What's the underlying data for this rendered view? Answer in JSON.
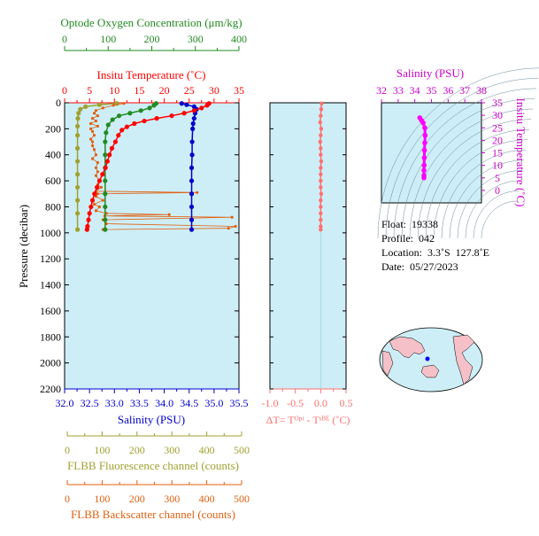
{
  "colors": {
    "temperature": "#ff0000",
    "salinity": "#0000cc",
    "oxygen": "#228b22",
    "fluorescence": "#a0a030",
    "backscatter": "#e06010",
    "salinity_ts": "#cc00cc",
    "delta_t": "#ff6f6f",
    "plot_bg": "#cdeef7",
    "ts_dots": "#ff00ff"
  },
  "chart_data": [
    {
      "type": "line",
      "name": "main-profile",
      "ylabel": "Pressure (decibar)",
      "ylim": [
        2200,
        0
      ],
      "yticks": [
        "0",
        "200",
        "400",
        "600",
        "800",
        "1000",
        "1200",
        "1400",
        "1600",
        "1800",
        "2000",
        "2200"
      ],
      "axes": {
        "oxygen": {
          "label": "Optode Oxygen Concentration (μm/kg)",
          "lim": [
            0,
            400
          ],
          "ticks": [
            "0",
            "100",
            "200",
            "300",
            "400"
          ]
        },
        "temperature": {
          "label": "Insitu Temperature (˚C)",
          "lim": [
            0,
            35
          ],
          "ticks": [
            "0",
            "5",
            "10",
            "15",
            "20",
            "25",
            "30",
            "35"
          ]
        },
        "salinity": {
          "label": "Salinity (PSU)",
          "lim": [
            32.0,
            35.5
          ],
          "ticks": [
            "32.0",
            "32.5",
            "33.0",
            "33.5",
            "34.0",
            "34.5",
            "35.0",
            "35.5"
          ]
        },
        "fluorescence": {
          "label": "FLBB Fluorescence channel (counts)",
          "lim": [
            0,
            500
          ],
          "ticks": [
            "0",
            "100",
            "200",
            "300",
            "400",
            "500"
          ]
        },
        "backscatter": {
          "label": "FLBB Backscatter channel (counts)",
          "lim": [
            0,
            500
          ],
          "ticks": [
            "0",
            "100",
            "200",
            "300",
            "400",
            "500"
          ]
        }
      },
      "series": [
        {
          "key": "temperature",
          "points": [
            [
              29.0,
              5
            ],
            [
              28.6,
              20
            ],
            [
              27.5,
              40
            ],
            [
              26.0,
              60
            ],
            [
              24.0,
              80
            ],
            [
              21.5,
              100
            ],
            [
              18.5,
              120
            ],
            [
              16.0,
              140
            ],
            [
              14.0,
              160
            ],
            [
              12.5,
              185
            ],
            [
              11.5,
              210
            ],
            [
              10.8,
              250
            ],
            [
              10.2,
              300
            ],
            [
              9.5,
              350
            ],
            [
              9.0,
              400
            ],
            [
              8.6,
              450
            ],
            [
              8.2,
              500
            ],
            [
              7.6,
              550
            ],
            [
              7.0,
              600
            ],
            [
              6.5,
              650
            ],
            [
              6.0,
              700
            ],
            [
              5.6,
              750
            ],
            [
              5.3,
              800
            ],
            [
              5.0,
              850
            ],
            [
              4.8,
              900
            ],
            [
              4.6,
              950
            ],
            [
              4.5,
              975
            ]
          ]
        },
        {
          "key": "salinity",
          "points": [
            [
              34.35,
              5
            ],
            [
              34.45,
              15
            ],
            [
              34.6,
              30
            ],
            [
              34.65,
              50
            ],
            [
              34.62,
              80
            ],
            [
              34.6,
              120
            ],
            [
              34.58,
              160
            ],
            [
              34.57,
              200
            ],
            [
              34.56,
              300
            ],
            [
              34.56,
              400
            ],
            [
              34.55,
              500
            ],
            [
              34.55,
              600
            ],
            [
              34.55,
              700
            ],
            [
              34.55,
              800
            ],
            [
              34.55,
              900
            ],
            [
              34.55,
              975
            ]
          ]
        },
        {
          "key": "oxygen",
          "points": [
            [
              210,
              5
            ],
            [
              205,
              20
            ],
            [
              195,
              40
            ],
            [
              175,
              60
            ],
            [
              150,
              80
            ],
            [
              125,
              100
            ],
            [
              110,
              130
            ],
            [
              100,
              170
            ],
            [
              95,
              230
            ],
            [
              93,
              300
            ],
            [
              93,
              400
            ],
            [
              93,
              500
            ],
            [
              93,
              600
            ],
            [
              93,
              700
            ],
            [
              93,
              800
            ],
            [
              93,
              900
            ],
            [
              93,
              975
            ]
          ]
        },
        {
          "key": "fluorescence",
          "points": [
            [
              150,
              5
            ],
            [
              100,
              15
            ],
            [
              60,
              30
            ],
            [
              45,
              50
            ],
            [
              40,
              80
            ],
            [
              38,
              120
            ],
            [
              37,
              180
            ],
            [
              37,
              250
            ],
            [
              37,
              350
            ],
            [
              37,
              450
            ],
            [
              37,
              550
            ],
            [
              37,
              650
            ],
            [
              37,
              750
            ],
            [
              37,
              850
            ],
            [
              37,
              975
            ]
          ]
        },
        {
          "key": "backscatter",
          "points": [
            [
              170,
              5
            ],
            [
              140,
              20
            ],
            [
              110,
              40
            ],
            [
              90,
              60
            ],
            [
              85,
              80
            ],
            [
              95,
              100
            ],
            [
              80,
              120
            ],
            [
              90,
              140
            ],
            [
              75,
              160
            ],
            [
              95,
              180
            ],
            [
              75,
              200
            ],
            [
              80,
              220
            ],
            [
              85,
              250
            ],
            [
              75,
              280
            ],
            [
              80,
              300
            ],
            [
              80,
              330
            ],
            [
              85,
              360
            ],
            [
              90,
              400
            ],
            [
              80,
              430
            ],
            [
              95,
              460
            ],
            [
              90,
              500
            ],
            [
              95,
              530
            ],
            [
              90,
              560
            ],
            [
              100,
              600
            ],
            [
              95,
              630
            ],
            [
              105,
              650
            ],
            [
              90,
              680
            ],
            [
              380,
              690
            ],
            [
              95,
              700
            ],
            [
              90,
              720
            ],
            [
              110,
              750
            ],
            [
              85,
              780
            ],
            [
              100,
              800
            ],
            [
              90,
              830
            ],
            [
              120,
              850
            ],
            [
              300,
              860
            ],
            [
              115,
              870
            ],
            [
              480,
              880
            ],
            [
              110,
              900
            ],
            [
              120,
              930
            ],
            [
              490,
              950
            ],
            [
              470,
              965
            ],
            [
              110,
              975
            ]
          ]
        }
      ]
    },
    {
      "type": "scatter",
      "name": "delta-t",
      "xlabel": "ΔT= Tᴼᵖᵗ - Tˢᴮᴱ (˚C)",
      "xlim": [
        -1.0,
        0.5
      ],
      "xticks": [
        "-1.0",
        "-0.5",
        "0.0",
        "0.5"
      ],
      "ylim": [
        2200,
        0
      ],
      "points": [
        [
          0.02,
          5
        ],
        [
          0.01,
          50
        ],
        [
          0.0,
          100
        ],
        [
          -0.01,
          150
        ],
        [
          0.01,
          200
        ],
        [
          0.0,
          250
        ],
        [
          -0.01,
          300
        ],
        [
          0.0,
          350
        ],
        [
          0.0,
          400
        ],
        [
          0.01,
          450
        ],
        [
          0.0,
          500
        ],
        [
          0.0,
          550
        ],
        [
          0.0,
          600
        ],
        [
          0.0,
          650
        ],
        [
          0.01,
          700
        ],
        [
          0.0,
          750
        ],
        [
          0.0,
          800
        ],
        [
          0.0,
          850
        ],
        [
          0.0,
          900
        ],
        [
          0.0,
          950
        ],
        [
          0.0,
          975
        ]
      ]
    },
    {
      "type": "scatter",
      "name": "ts-diagram",
      "xlabel": "Salinity (PSU)",
      "ylabel": "Insitu Temperature (˚C)",
      "xlim": [
        32,
        38
      ],
      "ylim": [
        -5,
        35
      ],
      "xticks": [
        "32",
        "33",
        "34",
        "35",
        "36",
        "37",
        "38"
      ],
      "yticks": [
        "0",
        "5",
        "10",
        "15",
        "20",
        "25",
        "30",
        "35"
      ],
      "points": [
        [
          34.3,
          29
        ],
        [
          34.4,
          28
        ],
        [
          34.5,
          27
        ],
        [
          34.6,
          25
        ],
        [
          34.62,
          22
        ],
        [
          34.6,
          19
        ],
        [
          34.58,
          16
        ],
        [
          34.57,
          13
        ],
        [
          34.56,
          10
        ],
        [
          34.55,
          8
        ],
        [
          34.55,
          6
        ],
        [
          34.55,
          5
        ]
      ]
    }
  ],
  "info": {
    "float": "Float:  19338",
    "profile": "Profile:  042",
    "location": "Location:  3.3˚S  127.8˚E",
    "date": "Date:  05/27/2023"
  },
  "map": {
    "float_position": [
      127.8,
      -3.3
    ]
  }
}
